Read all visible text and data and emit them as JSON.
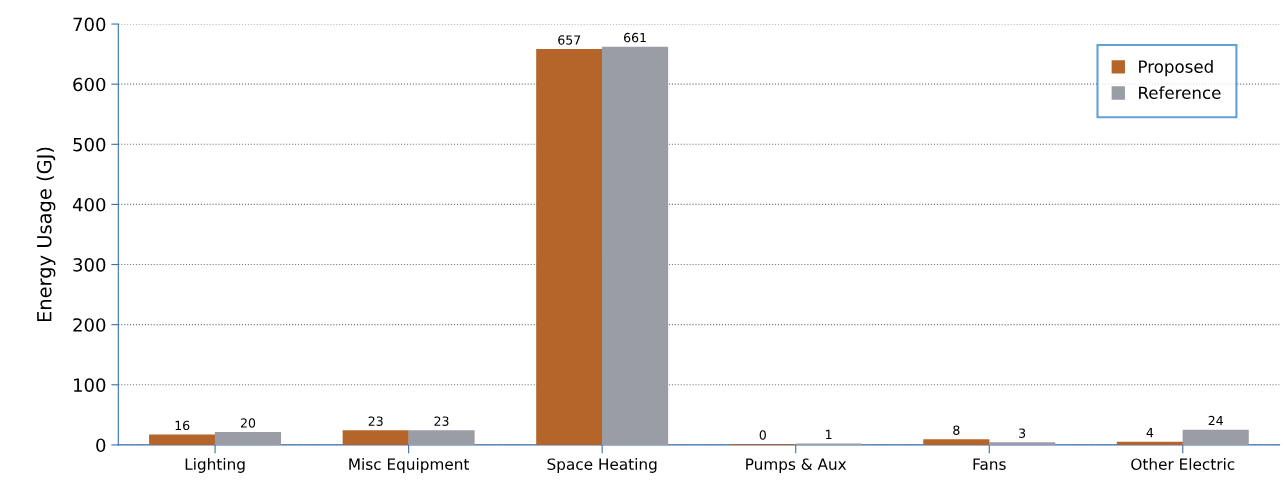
{
  "chart_data": {
    "type": "bar",
    "ylabel": "Energy Usage (GJ)",
    "categories": [
      "Lighting",
      "Misc Equipment",
      "Space Heating",
      "Pumps & Aux",
      "Fans",
      "Other Electric"
    ],
    "series": [
      {
        "name": "Proposed",
        "color": "#b5652a",
        "values": [
          16,
          23,
          657,
          0,
          8,
          4
        ]
      },
      {
        "name": "Reference",
        "color": "#9b9da4",
        "values": [
          20,
          23,
          661,
          1,
          3,
          24
        ]
      }
    ],
    "ylim": [
      0,
      700
    ],
    "yticks": [
      0,
      100,
      200,
      300,
      400,
      500,
      600,
      700
    ],
    "grid": "y",
    "legend": "top right",
    "data_labels": true
  }
}
